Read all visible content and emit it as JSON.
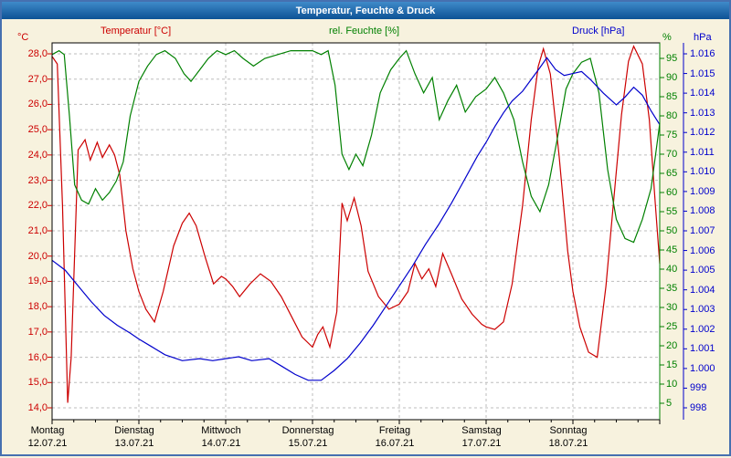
{
  "window": {
    "title": "Temperatur, Feuchte & Druck"
  },
  "chart_data": {
    "type": "line",
    "title": "Temperatur, Feuchte & Druck",
    "grid": "dashed",
    "x_axis": {
      "range_days": [
        0,
        7
      ],
      "days": [
        {
          "name": "Montag",
          "date": "12.07.21"
        },
        {
          "name": "Dienstag",
          "date": "13.07.21"
        },
        {
          "name": "Mittwoch",
          "date": "14.07.21"
        },
        {
          "name": "Donnerstag",
          "date": "15.07.21"
        },
        {
          "name": "Freitag",
          "date": "16.07.21"
        },
        {
          "name": "Samstag",
          "date": "17.07.21"
        },
        {
          "name": "Sonntag",
          "date": "18.07.21"
        }
      ]
    },
    "axes": {
      "temperature": {
        "label": "Temperatur [°C]",
        "unit": "°C",
        "color": "#cc0000",
        "range": [
          14,
          28
        ],
        "ticks": [
          "28,0",
          "27,0",
          "26,0",
          "25,0",
          "24,0",
          "23,0",
          "22,0",
          "21,0",
          "20,0",
          "19,0",
          "18,0",
          "17,0",
          "16,0",
          "15,0",
          "14,0"
        ],
        "tick_values": [
          28,
          27,
          26,
          25,
          24,
          23,
          22,
          21,
          20,
          19,
          18,
          17,
          16,
          15,
          14
        ]
      },
      "humidity": {
        "label": "rel. Feuchte [%]",
        "unit": "%",
        "color": "#008000",
        "range": [
          0,
          100
        ],
        "ticks": [
          "95",
          "90",
          "85",
          "80",
          "75",
          "70",
          "65",
          "60",
          "55",
          "50",
          "45",
          "40",
          "35",
          "30",
          "25",
          "20",
          "15",
          "10",
          "5"
        ],
        "tick_values": [
          95,
          90,
          85,
          80,
          75,
          70,
          65,
          60,
          55,
          50,
          45,
          40,
          35,
          30,
          25,
          20,
          15,
          10,
          5
        ]
      },
      "pressure": {
        "label": "Druck [hPa]",
        "unit": "hPa",
        "color": "#0000cc",
        "range": [
          998,
          1016
        ],
        "ticks": [
          "1.016",
          "1.015",
          "1.014",
          "1.013",
          "1.012",
          "1.011",
          "1.010",
          "1.009",
          "1.008",
          "1.007",
          "1.006",
          "1.005",
          "1.004",
          "1.003",
          "1.002",
          "1.001",
          "1.000",
          "999",
          "998"
        ],
        "tick_values": [
          1016,
          1015,
          1014,
          1013,
          1012,
          1011,
          1010,
          1009,
          1008,
          1007,
          1006,
          1005,
          1004,
          1003,
          1002,
          1001,
          1000,
          999,
          998
        ]
      }
    },
    "series": [
      {
        "name": "Temperatur",
        "axis": "temperature",
        "color": "#cc0000",
        "points": [
          [
            0,
            27.9
          ],
          [
            0.06,
            27.6
          ],
          [
            0.12,
            22.0
          ],
          [
            0.18,
            14.2
          ],
          [
            0.22,
            16.0
          ],
          [
            0.3,
            24.2
          ],
          [
            0.38,
            24.6
          ],
          [
            0.44,
            23.8
          ],
          [
            0.52,
            24.5
          ],
          [
            0.58,
            23.9
          ],
          [
            0.66,
            24.4
          ],
          [
            0.72,
            24.0
          ],
          [
            0.78,
            23.2
          ],
          [
            0.85,
            21.0
          ],
          [
            0.93,
            19.5
          ],
          [
            1.0,
            18.6
          ],
          [
            1.08,
            17.9
          ],
          [
            1.18,
            17.4
          ],
          [
            1.28,
            18.6
          ],
          [
            1.4,
            20.4
          ],
          [
            1.5,
            21.3
          ],
          [
            1.58,
            21.7
          ],
          [
            1.66,
            21.2
          ],
          [
            1.76,
            20.0
          ],
          [
            1.86,
            18.9
          ],
          [
            1.95,
            19.2
          ],
          [
            2.0,
            19.1
          ],
          [
            2.08,
            18.8
          ],
          [
            2.16,
            18.4
          ],
          [
            2.28,
            18.9
          ],
          [
            2.4,
            19.3
          ],
          [
            2.52,
            19.0
          ],
          [
            2.64,
            18.4
          ],
          [
            2.76,
            17.6
          ],
          [
            2.88,
            16.8
          ],
          [
            3.0,
            16.4
          ],
          [
            3.06,
            16.9
          ],
          [
            3.12,
            17.2
          ],
          [
            3.2,
            16.4
          ],
          [
            3.28,
            17.8
          ],
          [
            3.34,
            22.1
          ],
          [
            3.4,
            21.4
          ],
          [
            3.48,
            22.3
          ],
          [
            3.56,
            21.2
          ],
          [
            3.64,
            19.4
          ],
          [
            3.76,
            18.4
          ],
          [
            3.88,
            17.9
          ],
          [
            4.0,
            18.1
          ],
          [
            4.1,
            18.6
          ],
          [
            4.18,
            19.7
          ],
          [
            4.26,
            19.1
          ],
          [
            4.34,
            19.5
          ],
          [
            4.42,
            18.8
          ],
          [
            4.5,
            20.1
          ],
          [
            4.6,
            19.3
          ],
          [
            4.72,
            18.3
          ],
          [
            4.84,
            17.7
          ],
          [
            4.95,
            17.3
          ],
          [
            5.0,
            17.2
          ],
          [
            5.1,
            17.1
          ],
          [
            5.2,
            17.4
          ],
          [
            5.3,
            18.9
          ],
          [
            5.42,
            22.0
          ],
          [
            5.52,
            25.4
          ],
          [
            5.6,
            27.5
          ],
          [
            5.66,
            28.2
          ],
          [
            5.74,
            27.2
          ],
          [
            5.84,
            24.0
          ],
          [
            5.94,
            20.2
          ],
          [
            6.0,
            18.6
          ],
          [
            6.08,
            17.2
          ],
          [
            6.18,
            16.2
          ],
          [
            6.28,
            16.0
          ],
          [
            6.38,
            18.8
          ],
          [
            6.48,
            22.6
          ],
          [
            6.56,
            25.6
          ],
          [
            6.64,
            27.7
          ],
          [
            6.7,
            28.3
          ],
          [
            6.8,
            27.6
          ],
          [
            6.88,
            25.4
          ],
          [
            6.95,
            22.0
          ],
          [
            7.0,
            19.7
          ]
        ]
      },
      {
        "name": "rel. Feuchte",
        "axis": "humidity",
        "color": "#008000",
        "points": [
          [
            0,
            96
          ],
          [
            0.08,
            97
          ],
          [
            0.14,
            96
          ],
          [
            0.2,
            80
          ],
          [
            0.26,
            62
          ],
          [
            0.34,
            58
          ],
          [
            0.42,
            57
          ],
          [
            0.5,
            61
          ],
          [
            0.58,
            58
          ],
          [
            0.66,
            60
          ],
          [
            0.74,
            63
          ],
          [
            0.82,
            68
          ],
          [
            0.9,
            80
          ],
          [
            1.0,
            89
          ],
          [
            1.1,
            93
          ],
          [
            1.2,
            96
          ],
          [
            1.3,
            97
          ],
          [
            1.42,
            95
          ],
          [
            1.52,
            91
          ],
          [
            1.6,
            89
          ],
          [
            1.7,
            92
          ],
          [
            1.8,
            95
          ],
          [
            1.9,
            97
          ],
          [
            2.0,
            96
          ],
          [
            2.1,
            97
          ],
          [
            2.2,
            95
          ],
          [
            2.32,
            93
          ],
          [
            2.45,
            95
          ],
          [
            2.6,
            96
          ],
          [
            2.75,
            97
          ],
          [
            2.9,
            97
          ],
          [
            3.0,
            97
          ],
          [
            3.1,
            96
          ],
          [
            3.18,
            97
          ],
          [
            3.26,
            88
          ],
          [
            3.34,
            70
          ],
          [
            3.42,
            66
          ],
          [
            3.5,
            70
          ],
          [
            3.58,
            67
          ],
          [
            3.68,
            75
          ],
          [
            3.78,
            86
          ],
          [
            3.9,
            92
          ],
          [
            4.0,
            95
          ],
          [
            4.08,
            97
          ],
          [
            4.18,
            91
          ],
          [
            4.28,
            86
          ],
          [
            4.38,
            90
          ],
          [
            4.46,
            79
          ],
          [
            4.56,
            84
          ],
          [
            4.66,
            88
          ],
          [
            4.76,
            81
          ],
          [
            4.88,
            85
          ],
          [
            5.0,
            87
          ],
          [
            5.1,
            90
          ],
          [
            5.2,
            86
          ],
          [
            5.32,
            79
          ],
          [
            5.42,
            68
          ],
          [
            5.52,
            59
          ],
          [
            5.62,
            55
          ],
          [
            5.72,
            62
          ],
          [
            5.82,
            74
          ],
          [
            5.92,
            87
          ],
          [
            6.0,
            91
          ],
          [
            6.1,
            94
          ],
          [
            6.2,
            95
          ],
          [
            6.3,
            86
          ],
          [
            6.4,
            66
          ],
          [
            6.5,
            53
          ],
          [
            6.6,
            48
          ],
          [
            6.7,
            47
          ],
          [
            6.8,
            53
          ],
          [
            6.9,
            61
          ],
          [
            7.0,
            78
          ]
        ]
      },
      {
        "name": "Druck",
        "axis": "pressure",
        "color": "#0000cc",
        "points": [
          [
            0,
            1005.5
          ],
          [
            0.15,
            1005.0
          ],
          [
            0.3,
            1004.2
          ],
          [
            0.45,
            1003.4
          ],
          [
            0.6,
            1002.7
          ],
          [
            0.75,
            1002.2
          ],
          [
            0.9,
            1001.8
          ],
          [
            1.0,
            1001.5
          ],
          [
            1.15,
            1001.1
          ],
          [
            1.3,
            1000.7
          ],
          [
            1.5,
            1000.4
          ],
          [
            1.7,
            1000.5
          ],
          [
            1.85,
            1000.4
          ],
          [
            2.0,
            1000.5
          ],
          [
            2.15,
            1000.6
          ],
          [
            2.3,
            1000.4
          ],
          [
            2.5,
            1000.5
          ],
          [
            2.65,
            1000.1
          ],
          [
            2.8,
            999.7
          ],
          [
            2.95,
            999.4
          ],
          [
            3.1,
            999.4
          ],
          [
            3.25,
            999.9
          ],
          [
            3.4,
            1000.5
          ],
          [
            3.55,
            1001.3
          ],
          [
            3.7,
            1002.2
          ],
          [
            3.85,
            1003.2
          ],
          [
            4.0,
            1004.2
          ],
          [
            4.15,
            1005.2
          ],
          [
            4.3,
            1006.3
          ],
          [
            4.45,
            1007.3
          ],
          [
            4.6,
            1008.4
          ],
          [
            4.75,
            1009.6
          ],
          [
            4.9,
            1010.8
          ],
          [
            5.0,
            1011.5
          ],
          [
            5.1,
            1012.3
          ],
          [
            5.2,
            1013.0
          ],
          [
            5.3,
            1013.6
          ],
          [
            5.42,
            1014.1
          ],
          [
            5.52,
            1014.7
          ],
          [
            5.62,
            1015.3
          ],
          [
            5.7,
            1015.8
          ],
          [
            5.8,
            1015.2
          ],
          [
            5.9,
            1014.9
          ],
          [
            6.0,
            1015.0
          ],
          [
            6.1,
            1015.1
          ],
          [
            6.2,
            1014.7
          ],
          [
            6.35,
            1014.0
          ],
          [
            6.5,
            1013.4
          ],
          [
            6.6,
            1013.8
          ],
          [
            6.7,
            1014.3
          ],
          [
            6.8,
            1013.9
          ],
          [
            6.9,
            1013.1
          ],
          [
            7.0,
            1012.4
          ]
        ]
      }
    ]
  }
}
